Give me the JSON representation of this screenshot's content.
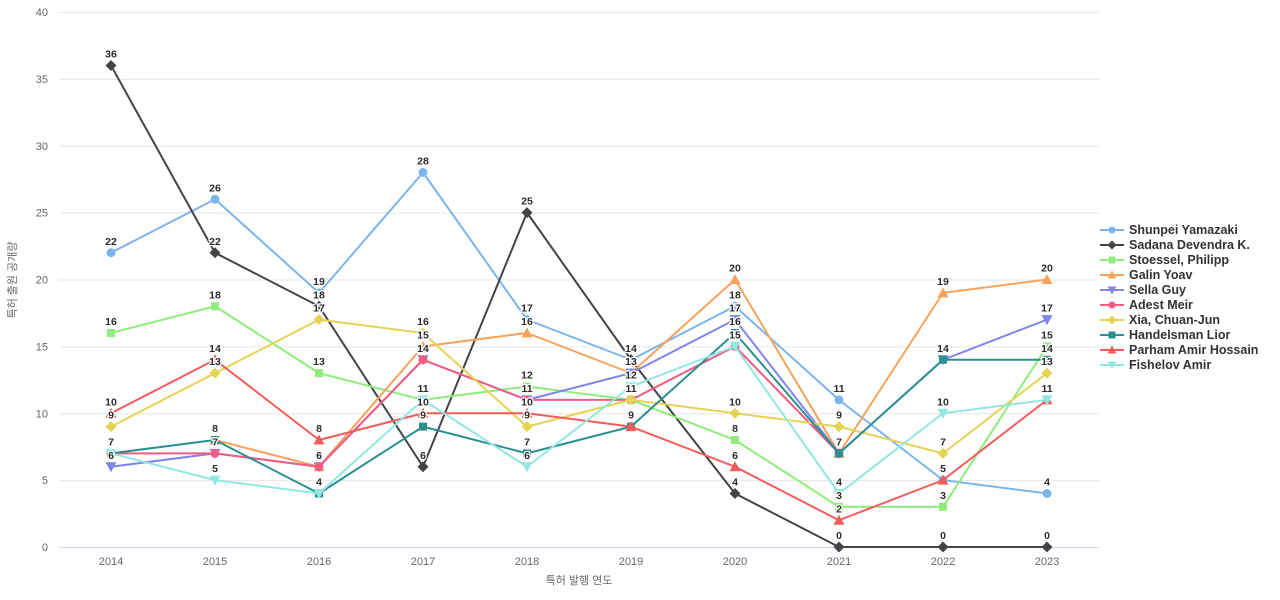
{
  "chart_data": {
    "type": "line",
    "title": "",
    "xlabel": "특허 발행 연도",
    "ylabel": "특허 출원 공개량",
    "categories": [
      "2014",
      "2015",
      "2016",
      "2017",
      "2018",
      "2019",
      "2020",
      "2021",
      "2022",
      "2023"
    ],
    "ylim": [
      0,
      40
    ],
    "ytick_step": 5,
    "grid": true,
    "legend_position": "right",
    "data_labels": true,
    "series": [
      {
        "name": "Shunpei Yamazaki",
        "color": "#7cb5ec",
        "marker": "circle",
        "values": [
          22,
          26,
          19,
          28,
          17,
          14,
          18,
          11,
          5,
          4
        ]
      },
      {
        "name": "Sadana Devendra K.",
        "color": "#434348",
        "marker": "diamond",
        "values": [
          36,
          22,
          18,
          6,
          25,
          14,
          4,
          0,
          0,
          0
        ]
      },
      {
        "name": "Stoessel, Philipp",
        "color": "#90ed7d",
        "marker": "square",
        "values": [
          16,
          18,
          13,
          11,
          12,
          11,
          8,
          3,
          3,
          15
        ]
      },
      {
        "name": "Galin Yoav",
        "color": "#f7a35c",
        "marker": "triangle",
        "values": [
          null,
          8,
          6,
          15,
          16,
          13,
          20,
          7,
          19,
          20
        ]
      },
      {
        "name": "Sella Guy",
        "color": "#8085e9",
        "marker": "triangle-down",
        "values": [
          6,
          7,
          6,
          14,
          11,
          13,
          17,
          7,
          14,
          17
        ]
      },
      {
        "name": "Adest Meir",
        "color": "#f15c80",
        "marker": "circle",
        "values": [
          7,
          7,
          6,
          14,
          11,
          11,
          15,
          7,
          null,
          null
        ]
      },
      {
        "name": "Xia, Chuan-Jun",
        "color": "#e4d354",
        "marker": "diamond",
        "values": [
          9,
          13,
          17,
          16,
          9,
          11,
          10,
          9,
          7,
          13
        ]
      },
      {
        "name": "Handelsman Lior",
        "color": "#2b908f",
        "marker": "square",
        "values": [
          7,
          8,
          4,
          9,
          7,
          9,
          16,
          7,
          14,
          14
        ]
      },
      {
        "name": "Parham Amir Hossain",
        "color": "#f45b5b",
        "marker": "triangle",
        "values": [
          10,
          14,
          8,
          10,
          10,
          9,
          6,
          2,
          5,
          11
        ]
      },
      {
        "name": "Fishelov Amir",
        "color": "#91e8e1",
        "marker": "triangle-down",
        "values": [
          7,
          5,
          4,
          11,
          6,
          12,
          15,
          4,
          10,
          11
        ]
      }
    ]
  },
  "colors": {
    "background": "#ffffff",
    "grid": "#e6e6e6",
    "axis_line": "#ccd6eb",
    "tick_text": "#666666",
    "axis_title_text": "#666666",
    "data_label": "#2b2b2b",
    "legend_text": "#333333"
  }
}
